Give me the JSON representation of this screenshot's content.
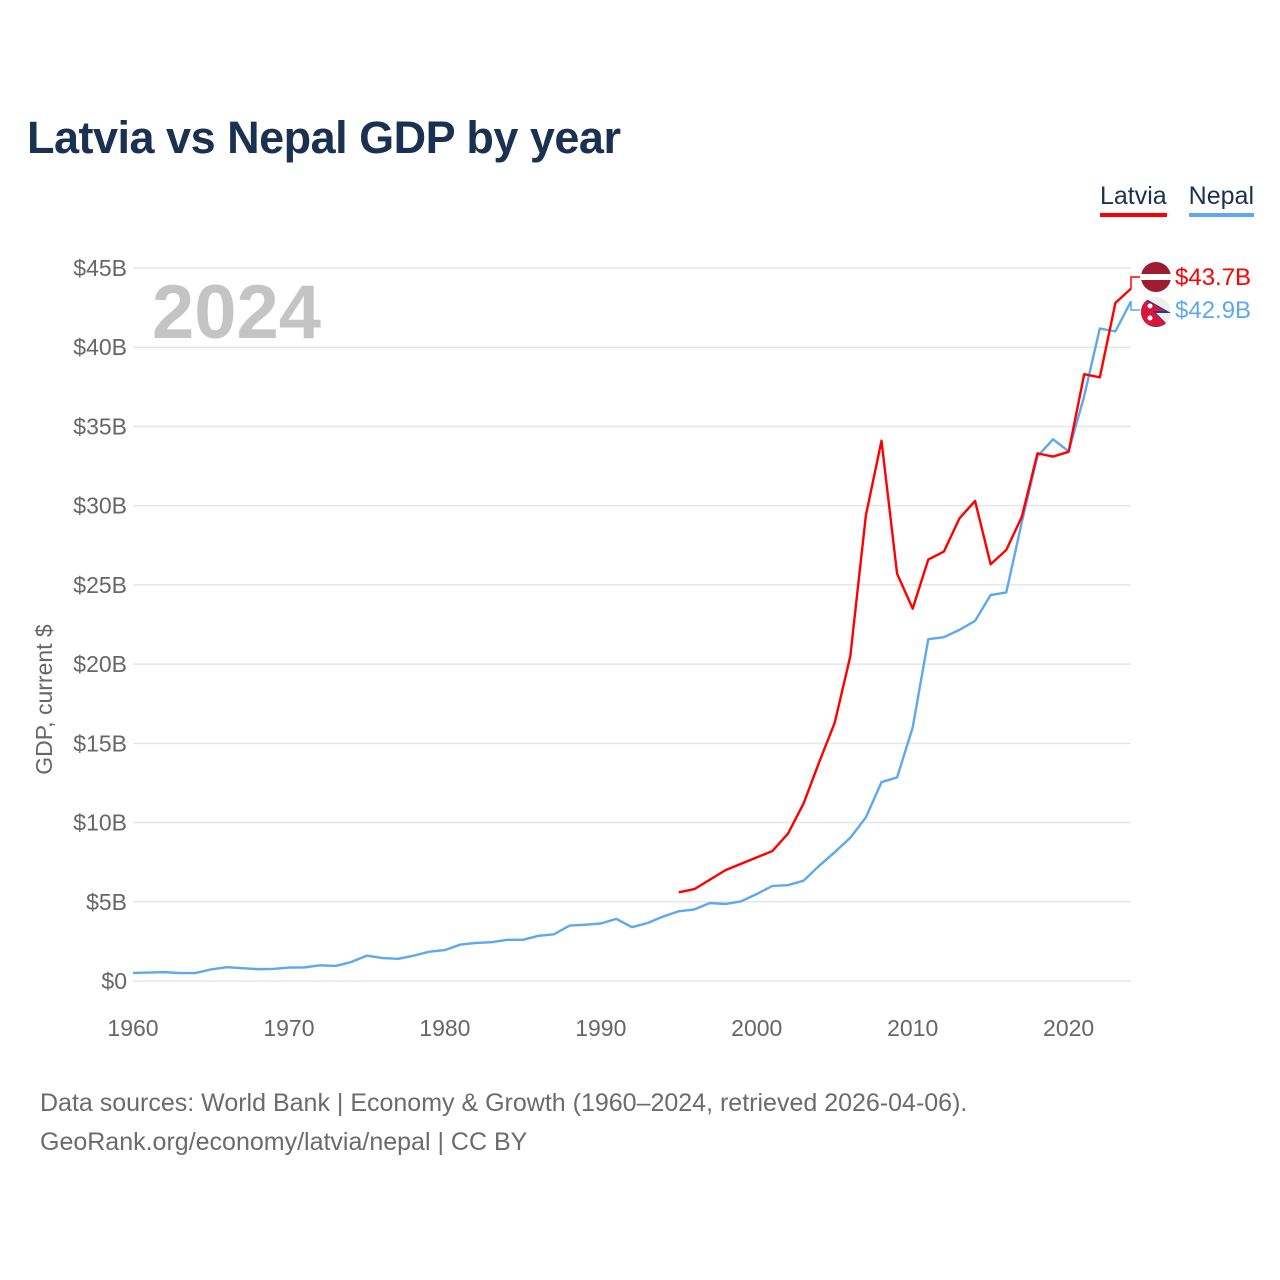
{
  "chart_data": {
    "type": "line",
    "title": "Latvia vs Nepal GDP by year",
    "xlabel": "",
    "ylabel": "GDP, current $",
    "xlim": [
      1960,
      2024
    ],
    "ylim": [
      0,
      45
    ],
    "grid": true,
    "legend_position": "top-right",
    "year_label": "2024",
    "x_ticks": [
      1960,
      1970,
      1980,
      1990,
      2000,
      2010,
      2020
    ],
    "x_tick_labels": [
      "1960",
      "1970",
      "1980",
      "1990",
      "2000",
      "2010",
      "2020"
    ],
    "y_ticks": [
      0,
      5,
      10,
      15,
      20,
      25,
      30,
      35,
      40,
      45
    ],
    "y_tick_labels": [
      "$0",
      "$5B",
      "$10B",
      "$15B",
      "$20B",
      "$25B",
      "$30B",
      "$35B",
      "$40B",
      "$45B"
    ],
    "series": [
      {
        "name": "Latvia",
        "color": "#ff0000",
        "end_label": "$43.7B",
        "start_year": 1995,
        "values": [
          5.6,
          5.8,
          6.4,
          7.0,
          7.4,
          7.8,
          8.2,
          9.3,
          11.2,
          13.8,
          16.3,
          20.5,
          29.4,
          34.1,
          25.7,
          23.5,
          26.6,
          27.1,
          29.2,
          30.3,
          26.3,
          27.2,
          29.3,
          33.3,
          33.1,
          33.4,
          38.3,
          38.1,
          42.8,
          43.7
        ]
      },
      {
        "name": "Nepal",
        "color": "#5da8ee",
        "end_label": "$42.9B",
        "start_year": 1960,
        "values": [
          0.51,
          0.53,
          0.56,
          0.5,
          0.5,
          0.73,
          0.87,
          0.81,
          0.75,
          0.76,
          0.85,
          0.86,
          0.99,
          0.95,
          1.2,
          1.6,
          1.45,
          1.4,
          1.6,
          1.85,
          1.95,
          2.3,
          2.4,
          2.45,
          2.6,
          2.6,
          2.85,
          2.95,
          3.5,
          3.55,
          3.63,
          3.92,
          3.4,
          3.66,
          4.07,
          4.4,
          4.52,
          4.92,
          4.86,
          5.03,
          5.49,
          6.0,
          6.05,
          6.33,
          7.27,
          8.13,
          9.04,
          10.33,
          12.55,
          12.85,
          16.0,
          21.57,
          21.7,
          22.16,
          22.73,
          24.36,
          24.52,
          28.97,
          33.11,
          34.19,
          33.43,
          36.92,
          41.18,
          41.0,
          42.9
        ]
      }
    ]
  },
  "footer": {
    "line1": "Data sources: World Bank | Economy & Growth (1960–2024, retrieved 2026-04-06).",
    "line2": "GeoRank.org/economy/latvia/nepal | CC BY"
  }
}
